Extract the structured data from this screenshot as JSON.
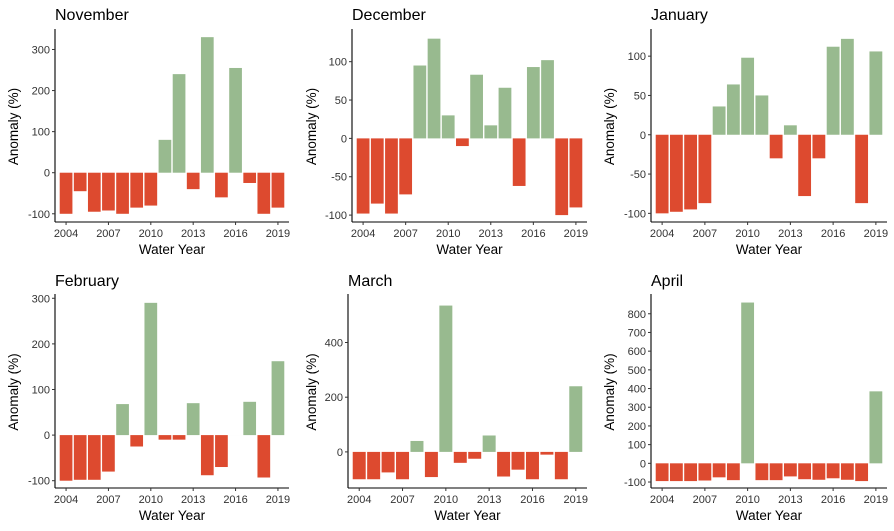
{
  "colors": {
    "positive": "#98BA8F",
    "negative": "#DD4A2F"
  },
  "chart_data": [
    {
      "type": "bar",
      "title": "November",
      "xlabel": "Water Year",
      "ylabel": "Anomaly (%)",
      "x": [
        2004,
        2005,
        2006,
        2007,
        2008,
        2009,
        2010,
        2011,
        2012,
        2013,
        2014,
        2015,
        2016,
        2017,
        2018,
        2019
      ],
      "values": [
        -100,
        -45,
        -95,
        -92,
        -100,
        -85,
        -80,
        80,
        240,
        -40,
        330,
        -60,
        255,
        -25,
        -100,
        -85
      ],
      "ylim": [
        -120,
        345
      ],
      "yticks": [
        -100,
        0,
        100,
        200,
        300
      ],
      "xticks": [
        2004,
        2007,
        2010,
        2013,
        2016,
        2019
      ]
    },
    {
      "type": "bar",
      "title": "December",
      "xlabel": "Water Year",
      "ylabel": "Anomaly (%)",
      "x": [
        2004,
        2005,
        2006,
        2007,
        2008,
        2009,
        2010,
        2011,
        2012,
        2013,
        2014,
        2015,
        2016,
        2017,
        2018,
        2019
      ],
      "values": [
        -98,
        -85,
        -98,
        -73,
        95,
        130,
        30,
        -10,
        83,
        17,
        66,
        -62,
        93,
        102,
        -100,
        -90
      ],
      "ylim": [
        -109,
        140
      ],
      "yticks": [
        -100,
        -50,
        0,
        50,
        100
      ],
      "xticks": [
        2004,
        2007,
        2010,
        2013,
        2016,
        2019
      ]
    },
    {
      "type": "bar",
      "title": "January",
      "xlabel": "Water Year",
      "ylabel": "Anomaly (%)",
      "x": [
        2004,
        2005,
        2006,
        2007,
        2008,
        2009,
        2010,
        2011,
        2012,
        2013,
        2014,
        2015,
        2016,
        2017,
        2018,
        2019
      ],
      "values": [
        -100,
        -98,
        -95,
        -87,
        36,
        64,
        98,
        50,
        -30,
        12,
        -78,
        -30,
        112,
        122,
        -87,
        106
      ],
      "ylim": [
        -111,
        132
      ],
      "yticks": [
        -100,
        -50,
        0,
        50,
        100
      ],
      "xticks": [
        2004,
        2007,
        2010,
        2013,
        2016,
        2019
      ]
    },
    {
      "type": "bar",
      "title": "February",
      "xlabel": "Water Year",
      "ylabel": "Anomaly (%)",
      "x": [
        2004,
        2005,
        2006,
        2007,
        2008,
        2009,
        2010,
        2011,
        2012,
        2013,
        2014,
        2015,
        2016,
        2017,
        2018,
        2019
      ],
      "values": [
        -100,
        -98,
        -98,
        -80,
        68,
        -25,
        290,
        -10,
        -10,
        70,
        -88,
        -70,
        0,
        73,
        -93,
        162
      ],
      "ylim": [
        -116,
        305
      ],
      "yticks": [
        -100,
        0,
        100,
        200,
        300
      ],
      "xticks": [
        2004,
        2007,
        2010,
        2013,
        2016,
        2019
      ]
    },
    {
      "type": "bar",
      "title": "March",
      "xlabel": "Water Year",
      "ylabel": "Anomaly (%)",
      "x": [
        2004,
        2005,
        2006,
        2007,
        2008,
        2009,
        2010,
        2011,
        2012,
        2013,
        2014,
        2015,
        2016,
        2017,
        2018,
        2019
      ],
      "values": [
        -100,
        -100,
        -75,
        -100,
        40,
        -92,
        535,
        -40,
        -25,
        60,
        -90,
        -65,
        -100,
        -10,
        -100,
        240
      ],
      "ylim": [
        -132,
        570
      ],
      "yticks": [
        0,
        200,
        400
      ],
      "xticks": [
        2004,
        2007,
        2010,
        2013,
        2016,
        2019
      ]
    },
    {
      "type": "bar",
      "title": "April",
      "xlabel": "Water Year",
      "ylabel": "Anomaly (%)",
      "x": [
        2004,
        2005,
        2006,
        2007,
        2008,
        2009,
        2010,
        2011,
        2012,
        2013,
        2014,
        2015,
        2016,
        2017,
        2018,
        2019
      ],
      "values": [
        -95,
        -95,
        -95,
        -92,
        -75,
        -90,
        860,
        -90,
        -90,
        -70,
        -85,
        -88,
        -80,
        -88,
        -95,
        385
      ],
      "ylim": [
        -132,
        895
      ],
      "yticks": [
        -100,
        0,
        100,
        200,
        300,
        400,
        500,
        600,
        700,
        800
      ],
      "xticks": [
        2004,
        2007,
        2010,
        2013,
        2016,
        2019
      ]
    }
  ]
}
